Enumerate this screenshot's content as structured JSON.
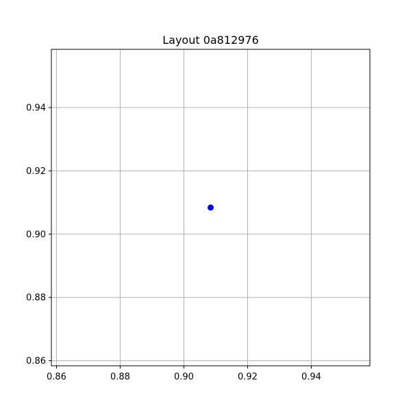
{
  "chart_data": {
    "type": "scatter",
    "title": "Layout 0a812976",
    "xlabel": "",
    "ylabel": "",
    "xlim": [
      0.8584,
      0.9584
    ],
    "ylim": [
      0.8584,
      0.9584
    ],
    "x_ticks": [
      0.86,
      0.88,
      0.9,
      0.92,
      0.94
    ],
    "y_ticks": [
      0.86,
      0.88,
      0.9,
      0.92,
      0.94
    ],
    "x_tick_labels": [
      "0.86",
      "0.88",
      "0.90",
      "0.92",
      "0.94"
    ],
    "y_tick_labels": [
      "0.86",
      "0.88",
      "0.90",
      "0.92",
      "0.94"
    ],
    "grid": true,
    "legend": "none",
    "series": [
      {
        "points": [
          {
            "x": 0.9084,
            "y": 0.9084
          }
        ],
        "color": "#0000ff"
      }
    ]
  },
  "colors": {
    "background": "#ffffff",
    "axes_edge": "#000000",
    "grid": "#b0b0b0",
    "point": "#0000ff"
  }
}
